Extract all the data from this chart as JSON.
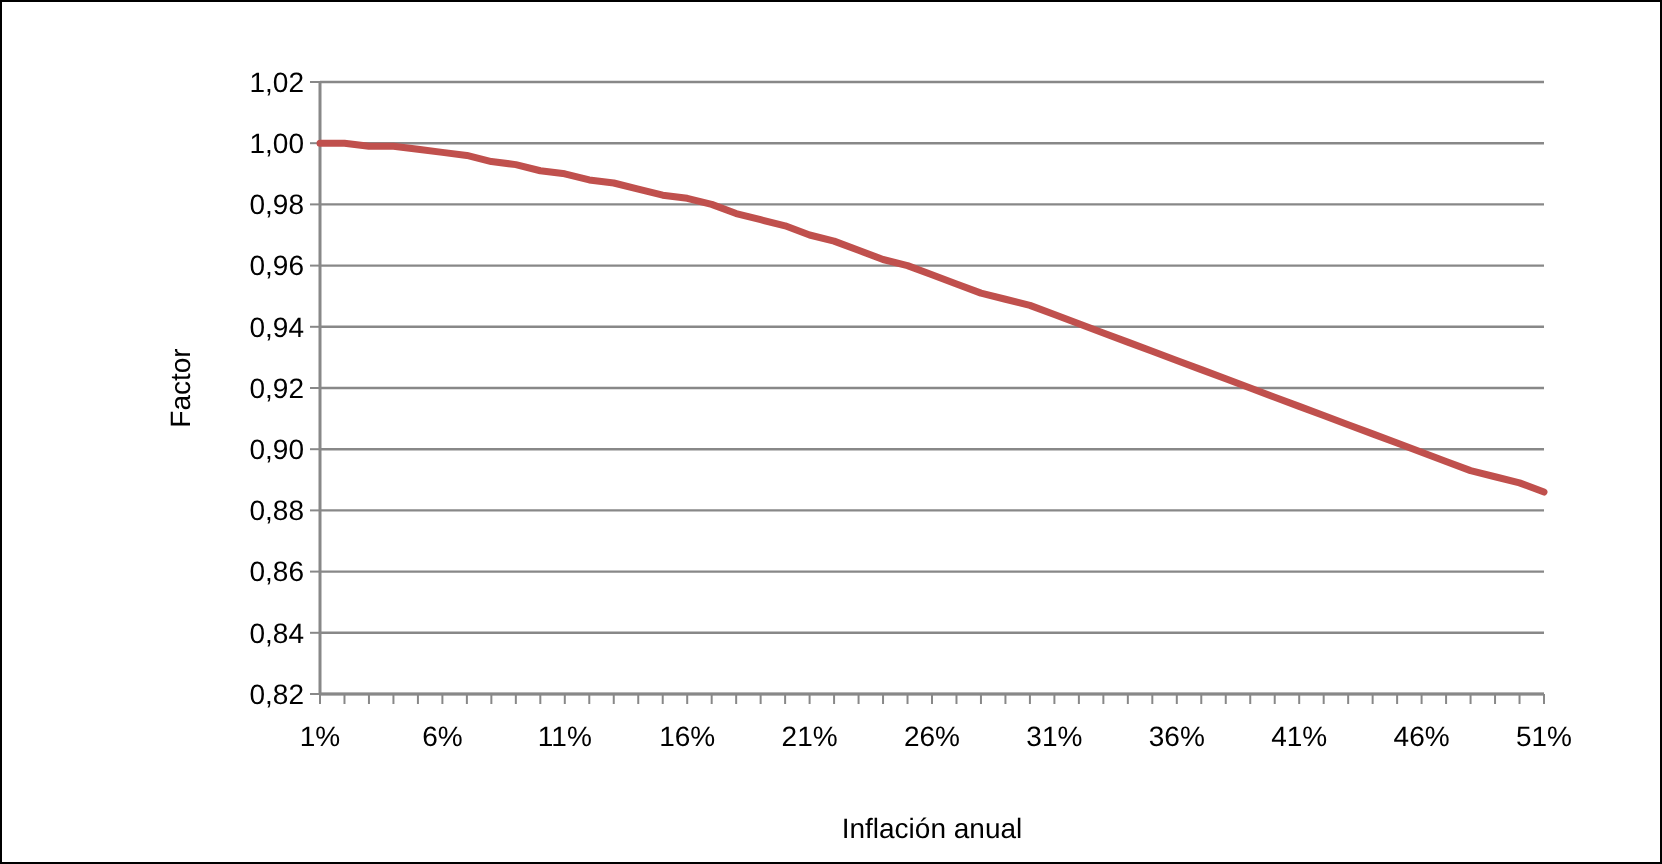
{
  "chart_data": {
    "type": "line",
    "xlabel": "Inflación anual",
    "ylabel": "Factor",
    "categories": [
      "1%",
      null,
      null,
      null,
      null,
      "6%",
      null,
      null,
      null,
      null,
      "11%",
      null,
      null,
      null,
      null,
      "16%",
      null,
      null,
      null,
      null,
      "21%",
      null,
      null,
      null,
      null,
      "26%",
      null,
      null,
      null,
      null,
      "31%",
      null,
      null,
      null,
      null,
      "36%",
      null,
      null,
      null,
      null,
      "41%",
      null,
      null,
      null,
      null,
      "46%",
      null,
      null,
      null,
      null,
      "51%"
    ],
    "series": [
      {
        "color": "#c0504d",
        "values": [
          1.0,
          1.0,
          0.999,
          0.999,
          0.998,
          0.997,
          0.996,
          0.994,
          0.993,
          0.991,
          0.99,
          0.988,
          0.987,
          0.985,
          0.983,
          0.982,
          0.98,
          0.977,
          0.975,
          0.973,
          0.97,
          0.968,
          0.965,
          0.962,
          0.96,
          0.957,
          0.954,
          0.951,
          0.949,
          0.947,
          0.944,
          0.941,
          0.938,
          0.935,
          0.932,
          0.929,
          0.926,
          0.923,
          0.92,
          0.917,
          0.914,
          0.911,
          0.908,
          0.905,
          0.902,
          0.899,
          0.896,
          0.893,
          0.891,
          0.889,
          0.886
        ]
      }
    ],
    "ylim": [
      0.82,
      1.02
    ],
    "yticks": [
      {
        "value": 0.82,
        "label": "0,82"
      },
      {
        "value": 0.84,
        "label": "0,84"
      },
      {
        "value": 0.86,
        "label": "0,86"
      },
      {
        "value": 0.88,
        "label": "0,88"
      },
      {
        "value": 0.9,
        "label": "0,90"
      },
      {
        "value": 0.92,
        "label": "0,92"
      },
      {
        "value": 0.94,
        "label": "0,94"
      },
      {
        "value": 0.96,
        "label": "0,96"
      },
      {
        "value": 0.98,
        "label": "0,98"
      },
      {
        "value": 1.0,
        "label": "1,00"
      },
      {
        "value": 1.02,
        "label": "1,02"
      }
    ],
    "grid": "y",
    "marker": "none",
    "line_style": "solid"
  }
}
